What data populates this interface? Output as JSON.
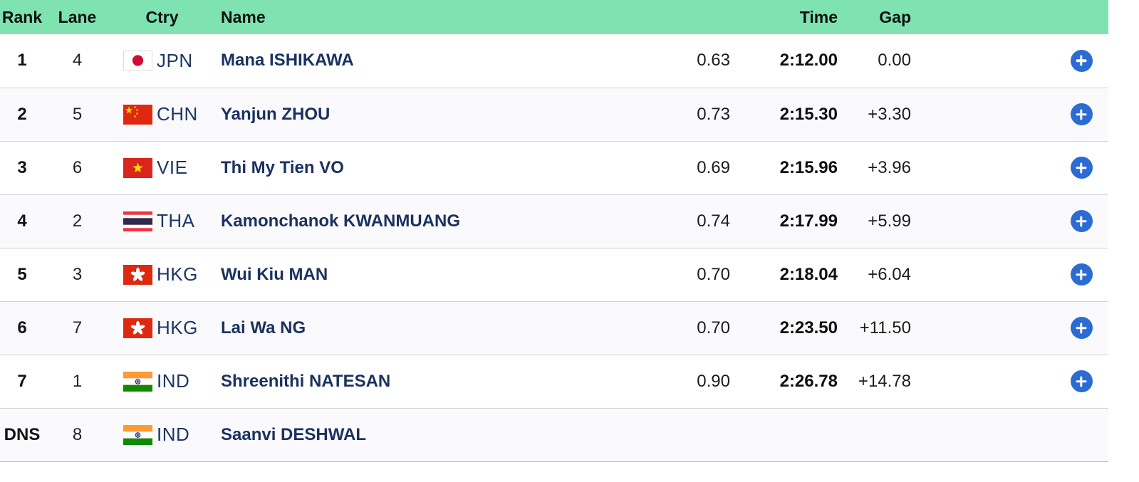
{
  "colors": {
    "header_bg": "#7ee3b1",
    "header_text": "#101010",
    "row_alt_bg": "#faf9fc",
    "row_border": "#d6d2d6",
    "bottom_border": "#b9b6ba",
    "name_text": "#1b3160",
    "country_text": "#1d3765",
    "time_text": "#0f0f0f",
    "plus_button": "#2b6cd4",
    "plus_glyph": "#ffffff",
    "flag_red": "#de2910",
    "flag_star_yellow": "#ffde00"
  },
  "table": {
    "columns": {
      "rank": "Rank",
      "lane": "Lane",
      "ctry": "Ctry",
      "name": "Name",
      "time": "Time",
      "gap": "Gap"
    },
    "rows": [
      {
        "rank": "1",
        "lane": "4",
        "ctry": "JPN",
        "name": "Mana ISHIKAWA",
        "reaction": "0.63",
        "time": "2:12.00",
        "gap": "0.00",
        "expandable": true
      },
      {
        "rank": "2",
        "lane": "5",
        "ctry": "CHN",
        "name": "Yanjun ZHOU",
        "reaction": "0.73",
        "time": "2:15.30",
        "gap": "+3.30",
        "expandable": true
      },
      {
        "rank": "3",
        "lane": "6",
        "ctry": "VIE",
        "name": "Thi My Tien VO",
        "reaction": "0.69",
        "time": "2:15.96",
        "gap": "+3.96",
        "expandable": true
      },
      {
        "rank": "4",
        "lane": "2",
        "ctry": "THA",
        "name": "Kamonchanok KWANMUANG",
        "reaction": "0.74",
        "time": "2:17.99",
        "gap": "+5.99",
        "expandable": true
      },
      {
        "rank": "5",
        "lane": "3",
        "ctry": "HKG",
        "name": "Wui Kiu MAN",
        "reaction": "0.70",
        "time": "2:18.04",
        "gap": "+6.04",
        "expandable": true
      },
      {
        "rank": "6",
        "lane": "7",
        "ctry": "HKG",
        "name": "Lai Wa NG",
        "reaction": "0.70",
        "time": "2:23.50",
        "gap": "+11.50",
        "expandable": true
      },
      {
        "rank": "7",
        "lane": "1",
        "ctry": "IND",
        "name": "Shreenithi NATESAN",
        "reaction": "0.90",
        "time": "2:26.78",
        "gap": "+14.78",
        "expandable": true
      },
      {
        "rank": "DNS",
        "lane": "8",
        "ctry": "IND",
        "name": "Saanvi DESHWAL",
        "reaction": "",
        "time": "",
        "gap": "",
        "expandable": false
      }
    ]
  }
}
